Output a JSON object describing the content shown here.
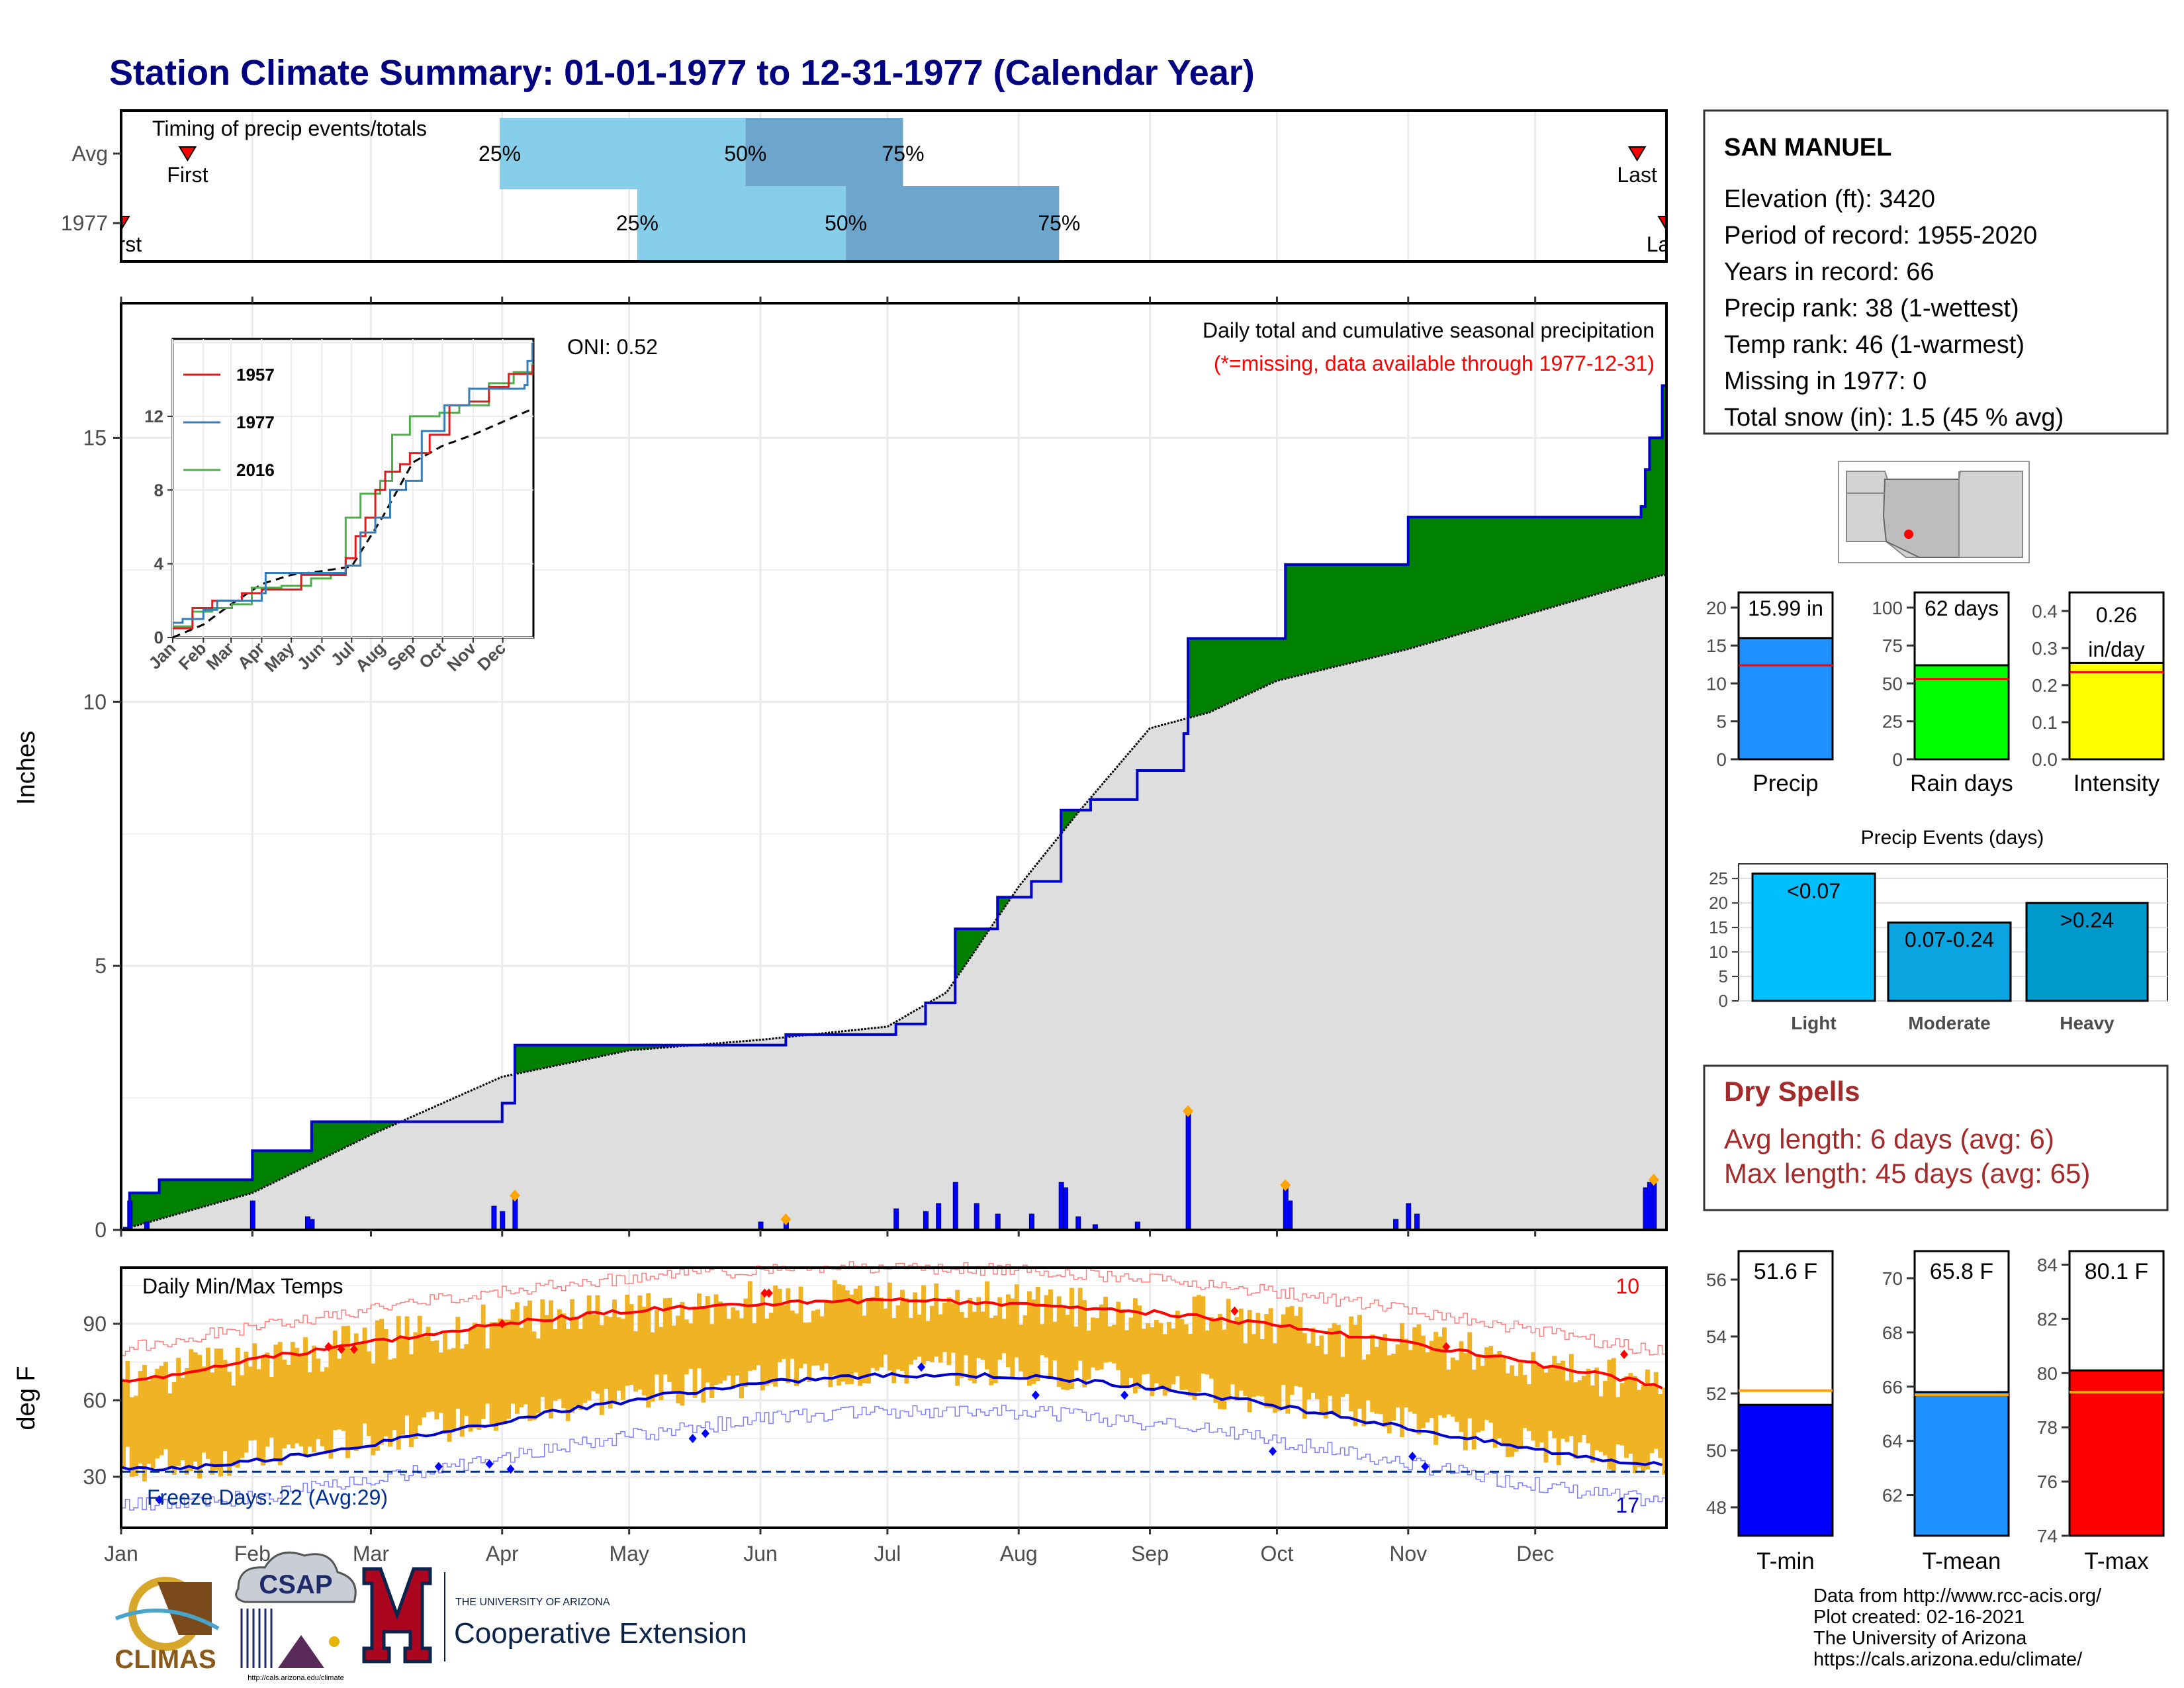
{
  "title": "Station Climate Summary: 01-01-1977 to 12-31-1977 (Calendar Year)",
  "months": [
    "Jan",
    "Feb",
    "Mar",
    "Apr",
    "May",
    "Jun",
    "Jul",
    "Aug",
    "Sep",
    "Oct",
    "Nov",
    "Dec"
  ],
  "timing": {
    "label": "Timing of precip events/totals",
    "rows": [
      {
        "name": "Avg",
        "p25": 0.245,
        "p50": 0.404,
        "p75": 0.506,
        "first": 0.043,
        "last": 0.981,
        "first_label": "First",
        "last_label": "Last"
      },
      {
        "name": "1977",
        "p25": 0.334,
        "p50": 0.469,
        "p75": 0.607,
        "first": 0.0,
        "last": 1.0,
        "first_label": "First",
        "last_label": "Last"
      }
    ],
    "pct_labels": [
      "25%",
      "50%",
      "75%"
    ]
  },
  "precip_panel": {
    "ylabel": "Inches",
    "title": "Daily total and cumulative seasonal precipitation",
    "note": "(*=missing, data available through 1977-12-31)",
    "oni": "ONI: 0.52",
    "y_ticks": [
      "0",
      "5",
      "10",
      "15"
    ]
  },
  "inset": {
    "y_ticks": [
      "0",
      "4",
      "8",
      "12"
    ],
    "x_ticks": [
      "Jan",
      "Feb",
      "Mar",
      "Apr",
      "May",
      "Jun",
      "Jul",
      "Aug",
      "Sep",
      "Oct",
      "Nov",
      "Dec"
    ],
    "legend": [
      {
        "name": "1957",
        "color": "#e41a1c"
      },
      {
        "name": "1977",
        "color": "#377eb8"
      },
      {
        "name": "2016",
        "color": "#4daf4a"
      }
    ]
  },
  "temp_panel": {
    "ylabel": "deg F",
    "title": "Daily Min/Max Temps",
    "record_high_count": "10",
    "record_low_count": "17",
    "freeze_label": "Freeze Days: 22 (Avg:29)",
    "y_ticks": [
      "30",
      "60",
      "90"
    ]
  },
  "station": {
    "name": "SAN MANUEL",
    "lines": [
      "Elevation (ft): 3420",
      "Period of record: 1955-2020",
      "Years in record: 66",
      "Precip rank: 38 (1-wettest)",
      "Temp rank: 46 (1-warmest)",
      "Missing in 1977: 0",
      "Total snow (in): 1.5 (45 % avg)"
    ]
  },
  "stat_bars": [
    {
      "label": "Precip",
      "value_label": "15.99 in",
      "value": 15.99,
      "avg": 12.4,
      "ymax": 22,
      "ticks": [
        "0",
        "5",
        "10",
        "15",
        "20"
      ],
      "tick_vals": [
        0,
        5,
        10,
        15,
        20
      ],
      "color": "#1e90ff"
    },
    {
      "label": "Rain days",
      "value_label": "62 days",
      "value": 62,
      "avg": 53,
      "ymax": 110,
      "ticks": [
        "0",
        "25",
        "50",
        "75",
        "100"
      ],
      "tick_vals": [
        0,
        25,
        50,
        75,
        100
      ],
      "color": "#00ff00"
    },
    {
      "label": "Intensity",
      "value_label": "0.26 in/day",
      "value": 0.26,
      "avg": 0.235,
      "ymax": 0.45,
      "ticks": [
        "0.0",
        "0.1",
        "0.2",
        "0.3",
        "0.4"
      ],
      "tick_vals": [
        0,
        0.1,
        0.2,
        0.3,
        0.4
      ],
      "color": "#ffff00"
    }
  ],
  "precip_events": {
    "title": "Precip Events (days)",
    "ticks": [
      "0",
      "5",
      "10",
      "15",
      "20",
      "25"
    ],
    "bars": [
      {
        "label": "Light",
        "inner": "<0.07",
        "value": 26,
        "color": "#00bfff"
      },
      {
        "label": "Moderate",
        "inner": "0.07-0.24",
        "value": 16,
        "color": "#0aa5e0"
      },
      {
        "label": "Heavy",
        "inner": ">0.24",
        "value": 20,
        "color": "#0099cc"
      }
    ]
  },
  "dry_spells": {
    "title": "Dry Spells",
    "avg_line": "Avg length: 6 days (avg: 6)",
    "max_line": "Max length: 45 days (avg: 65)"
  },
  "temp_bars": [
    {
      "label": "T-min",
      "value_label": "51.6 F",
      "value": 51.6,
      "avg": 52.1,
      "ymin": 47,
      "ymax": 57,
      "ticks": [
        "48",
        "50",
        "52",
        "54",
        "56"
      ],
      "tick_vals": [
        48,
        50,
        52,
        54,
        56
      ],
      "color": "#0000ff"
    },
    {
      "label": "T-mean",
      "value_label": "65.8 F",
      "value": 65.8,
      "avg": 65.7,
      "ymin": 60.5,
      "ymax": 71,
      "ticks": [
        "62",
        "64",
        "66",
        "68",
        "70"
      ],
      "tick_vals": [
        62,
        64,
        66,
        68,
        70
      ],
      "color": "#1e90ff"
    },
    {
      "label": "T-max",
      "value_label": "80.1 F",
      "value": 80.1,
      "avg": 79.3,
      "ymin": 74,
      "ymax": 84.5,
      "ticks": [
        "74",
        "76",
        "78",
        "80",
        "82",
        "84"
      ],
      "tick_vals": [
        74,
        76,
        78,
        80,
        82,
        84
      ],
      "color": "#ff0000"
    }
  ],
  "footer": {
    "credits": [
      "Data from http://www.rcc-acis.org/",
      "Plot created: 02-16-2021",
      "The University of Arizona",
      "https://cals.arizona.edu/climate/"
    ],
    "logo_climas": "CLIMAS",
    "logo_csap": "CSAP",
    "logo_csap_url": "http://cals.arizona.edu/climate",
    "ua_small": "THE UNIVERSITY OF ARIZONA",
    "ua_big": "Cooperative Extension"
  },
  "chart_data": {
    "type": "area",
    "title": "Daily total and cumulative seasonal precipitation",
    "ylabel": "Inches",
    "ylim": [
      0,
      17.5
    ],
    "year_total_in": 15.99,
    "series": [
      {
        "name": "cumulative observed",
        "points": [
          [
            "Jan 1",
            0
          ],
          [
            "Jan 3",
            0.7
          ],
          [
            "Jan 10",
            0.95
          ],
          [
            "Feb 1",
            1.5
          ],
          [
            "Feb 15",
            2.05
          ],
          [
            "Mar 15",
            2.05
          ],
          [
            "Apr 1",
            2.4
          ],
          [
            "Apr 4",
            3.5
          ],
          [
            "Jun 1",
            3.5
          ],
          [
            "Jun 7",
            3.7
          ],
          [
            "Jul 3",
            3.9
          ],
          [
            "Jul 10",
            4.3
          ],
          [
            "Jul 17",
            5.7
          ],
          [
            "Jul 27",
            6.3
          ],
          [
            "Aug 4",
            6.6
          ],
          [
            "Aug 11",
            7.95
          ],
          [
            "Aug 18",
            8.15
          ],
          [
            "Aug 29",
            8.7
          ],
          [
            "Sep 9",
            9.4
          ],
          [
            "Sep 10",
            11.2
          ],
          [
            "Sep 24",
            11.2
          ],
          [
            "Oct 3",
            12.6
          ],
          [
            "Oct 20",
            12.6
          ],
          [
            "Nov 1",
            13.5
          ],
          [
            "Nov 15",
            13.5
          ],
          [
            "Dec 26",
            13.7
          ],
          [
            "Dec 27",
            14.4
          ],
          [
            "Dec 28",
            15.0
          ],
          [
            "Dec 31",
            15.99
          ]
        ]
      },
      {
        "name": "cumulative average",
        "points": [
          [
            "Jan 1",
            0
          ],
          [
            "Feb 1",
            0.7
          ],
          [
            "Mar 1",
            1.8
          ],
          [
            "Apr 1",
            2.9
          ],
          [
            "May 1",
            3.4
          ],
          [
            "Jun 1",
            3.6
          ],
          [
            "Jul 1",
            3.85
          ],
          [
            "Jul 15",
            4.5
          ],
          [
            "Aug 1",
            6.5
          ],
          [
            "Aug 15",
            7.9
          ],
          [
            "Sep 1",
            9.5
          ],
          [
            "Sep 15",
            9.8
          ],
          [
            "Oct 1",
            10.4
          ],
          [
            "Nov 1",
            11.0
          ],
          [
            "Dec 1",
            11.7
          ],
          [
            "Dec 31",
            12.4
          ]
        ]
      }
    ],
    "daily_precip": [
      [
        "Jan 2",
        0.05
      ],
      [
        "Jan 3",
        0.55
      ],
      [
        "Jan 7",
        0.15
      ],
      [
        "Feb 1",
        0.55
      ],
      [
        "Feb 14",
        0.25
      ],
      [
        "Feb 15",
        0.2
      ],
      [
        "Mar 30",
        0.45
      ],
      [
        "Apr 1",
        0.35
      ],
      [
        "Apr 4",
        0.65
      ],
      [
        "Jun 1",
        0.15
      ],
      [
        "Jun 7",
        0.2
      ],
      [
        "Jul 3",
        0.4
      ],
      [
        "Jul 10",
        0.35
      ],
      [
        "Jul 13",
        0.5
      ],
      [
        "Jul 17",
        0.9
      ],
      [
        "Jul 22",
        0.5
      ],
      [
        "Jul 27",
        0.3
      ],
      [
        "Aug 4",
        0.3
      ],
      [
        "Aug 11",
        0.9
      ],
      [
        "Aug 12",
        0.8
      ],
      [
        "Aug 15",
        0.25
      ],
      [
        "Aug 19",
        0.1
      ],
      [
        "Aug 29",
        0.15
      ],
      [
        "Sep 10",
        2.25
      ],
      [
        "Oct 3",
        0.85
      ],
      [
        "Oct 4",
        0.55
      ],
      [
        "Oct 29",
        0.2
      ],
      [
        "Nov 1",
        0.5
      ],
      [
        "Nov 3",
        0.3
      ],
      [
        "Dec 27",
        0.8
      ],
      [
        "Dec 28",
        0.9
      ],
      [
        "Dec 29",
        0.95
      ]
    ]
  }
}
